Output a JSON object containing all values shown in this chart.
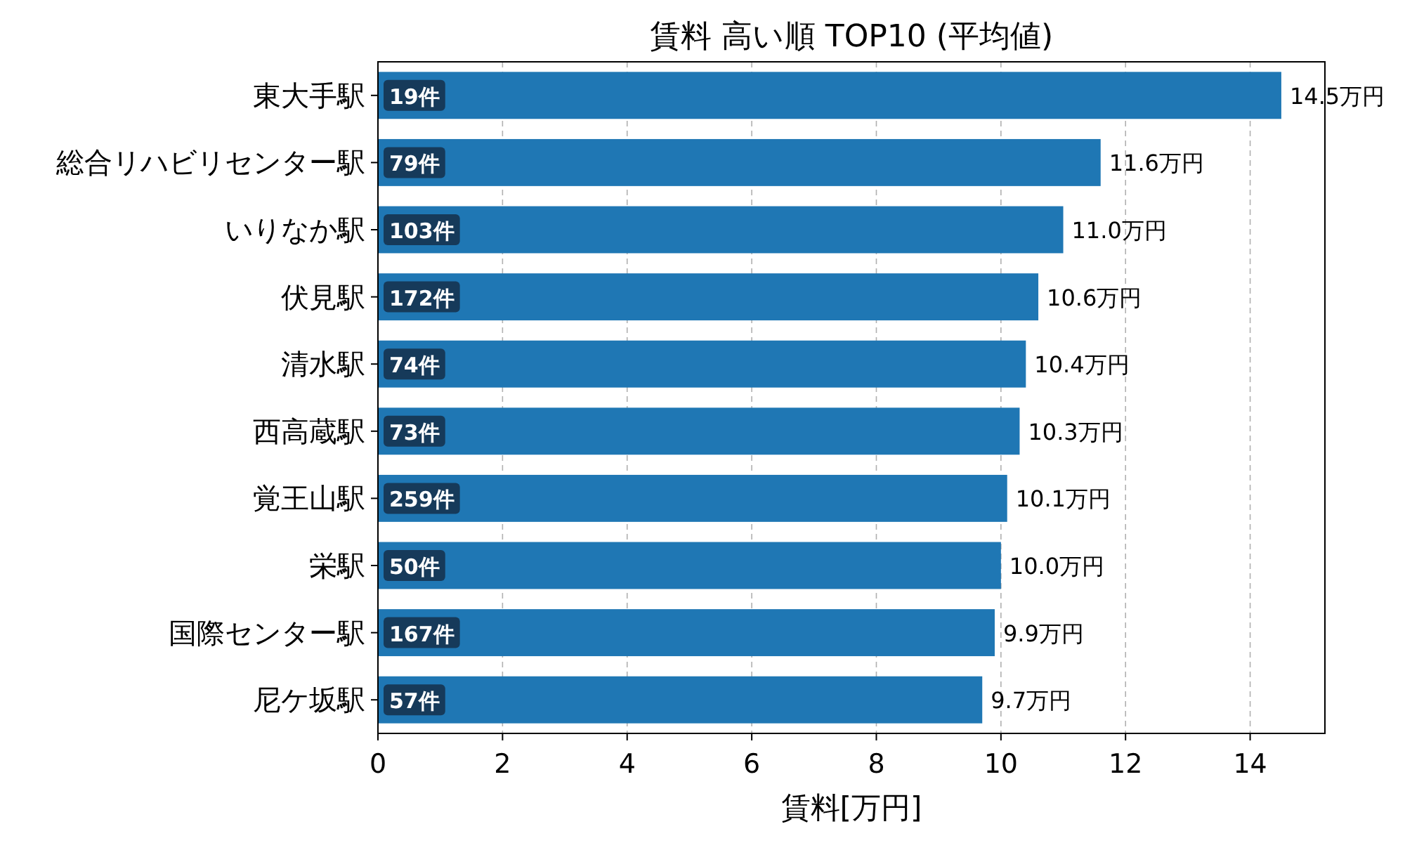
{
  "chart_data": {
    "type": "bar",
    "orientation": "horizontal",
    "title": "賃料 高い順 TOP10 (平均値)",
    "xlabel": "賃料[万円]",
    "categories": [
      "東大手駅",
      "総合リハビリセンター駅",
      "いりなか駅",
      "伏見駅",
      "清水駅",
      "西高蔵駅",
      "覚王山駅",
      "栄駅",
      "国際センター駅",
      "尼ケ坂駅"
    ],
    "values": [
      14.5,
      11.6,
      11.0,
      10.6,
      10.4,
      10.3,
      10.1,
      10.0,
      9.9,
      9.7
    ],
    "value_labels": [
      "14.5万円",
      "11.6万円",
      "11.0万円",
      "10.6万円",
      "10.4万円",
      "10.3万円",
      "10.1万円",
      "10.0万円",
      "9.9万円",
      "9.7万円"
    ],
    "color": "#1f77b4",
    "xlim": [
      0,
      15.2
    ],
    "xticks": [
      0,
      2,
      4,
      6,
      8,
      10,
      12,
      14
    ],
    "grid": "x",
    "annotations": [
      {
        "text": "19件",
        "y": "東大手駅"
      },
      {
        "text": "79件",
        "y": "総合リハビリセンター駅"
      },
      {
        "text": "103件",
        "y": "いりなか駅"
      },
      {
        "text": "172件",
        "y": "伏見駅"
      },
      {
        "text": "74件",
        "y": "清水駅"
      },
      {
        "text": "73件",
        "y": "西高蔵駅"
      },
      {
        "text": "259件",
        "y": "覚王山駅"
      },
      {
        "text": "50件",
        "y": "栄駅"
      },
      {
        "text": "167件",
        "y": "国際センター駅"
      },
      {
        "text": "57件",
        "y": "尼ケ坂駅"
      }
    ]
  }
}
